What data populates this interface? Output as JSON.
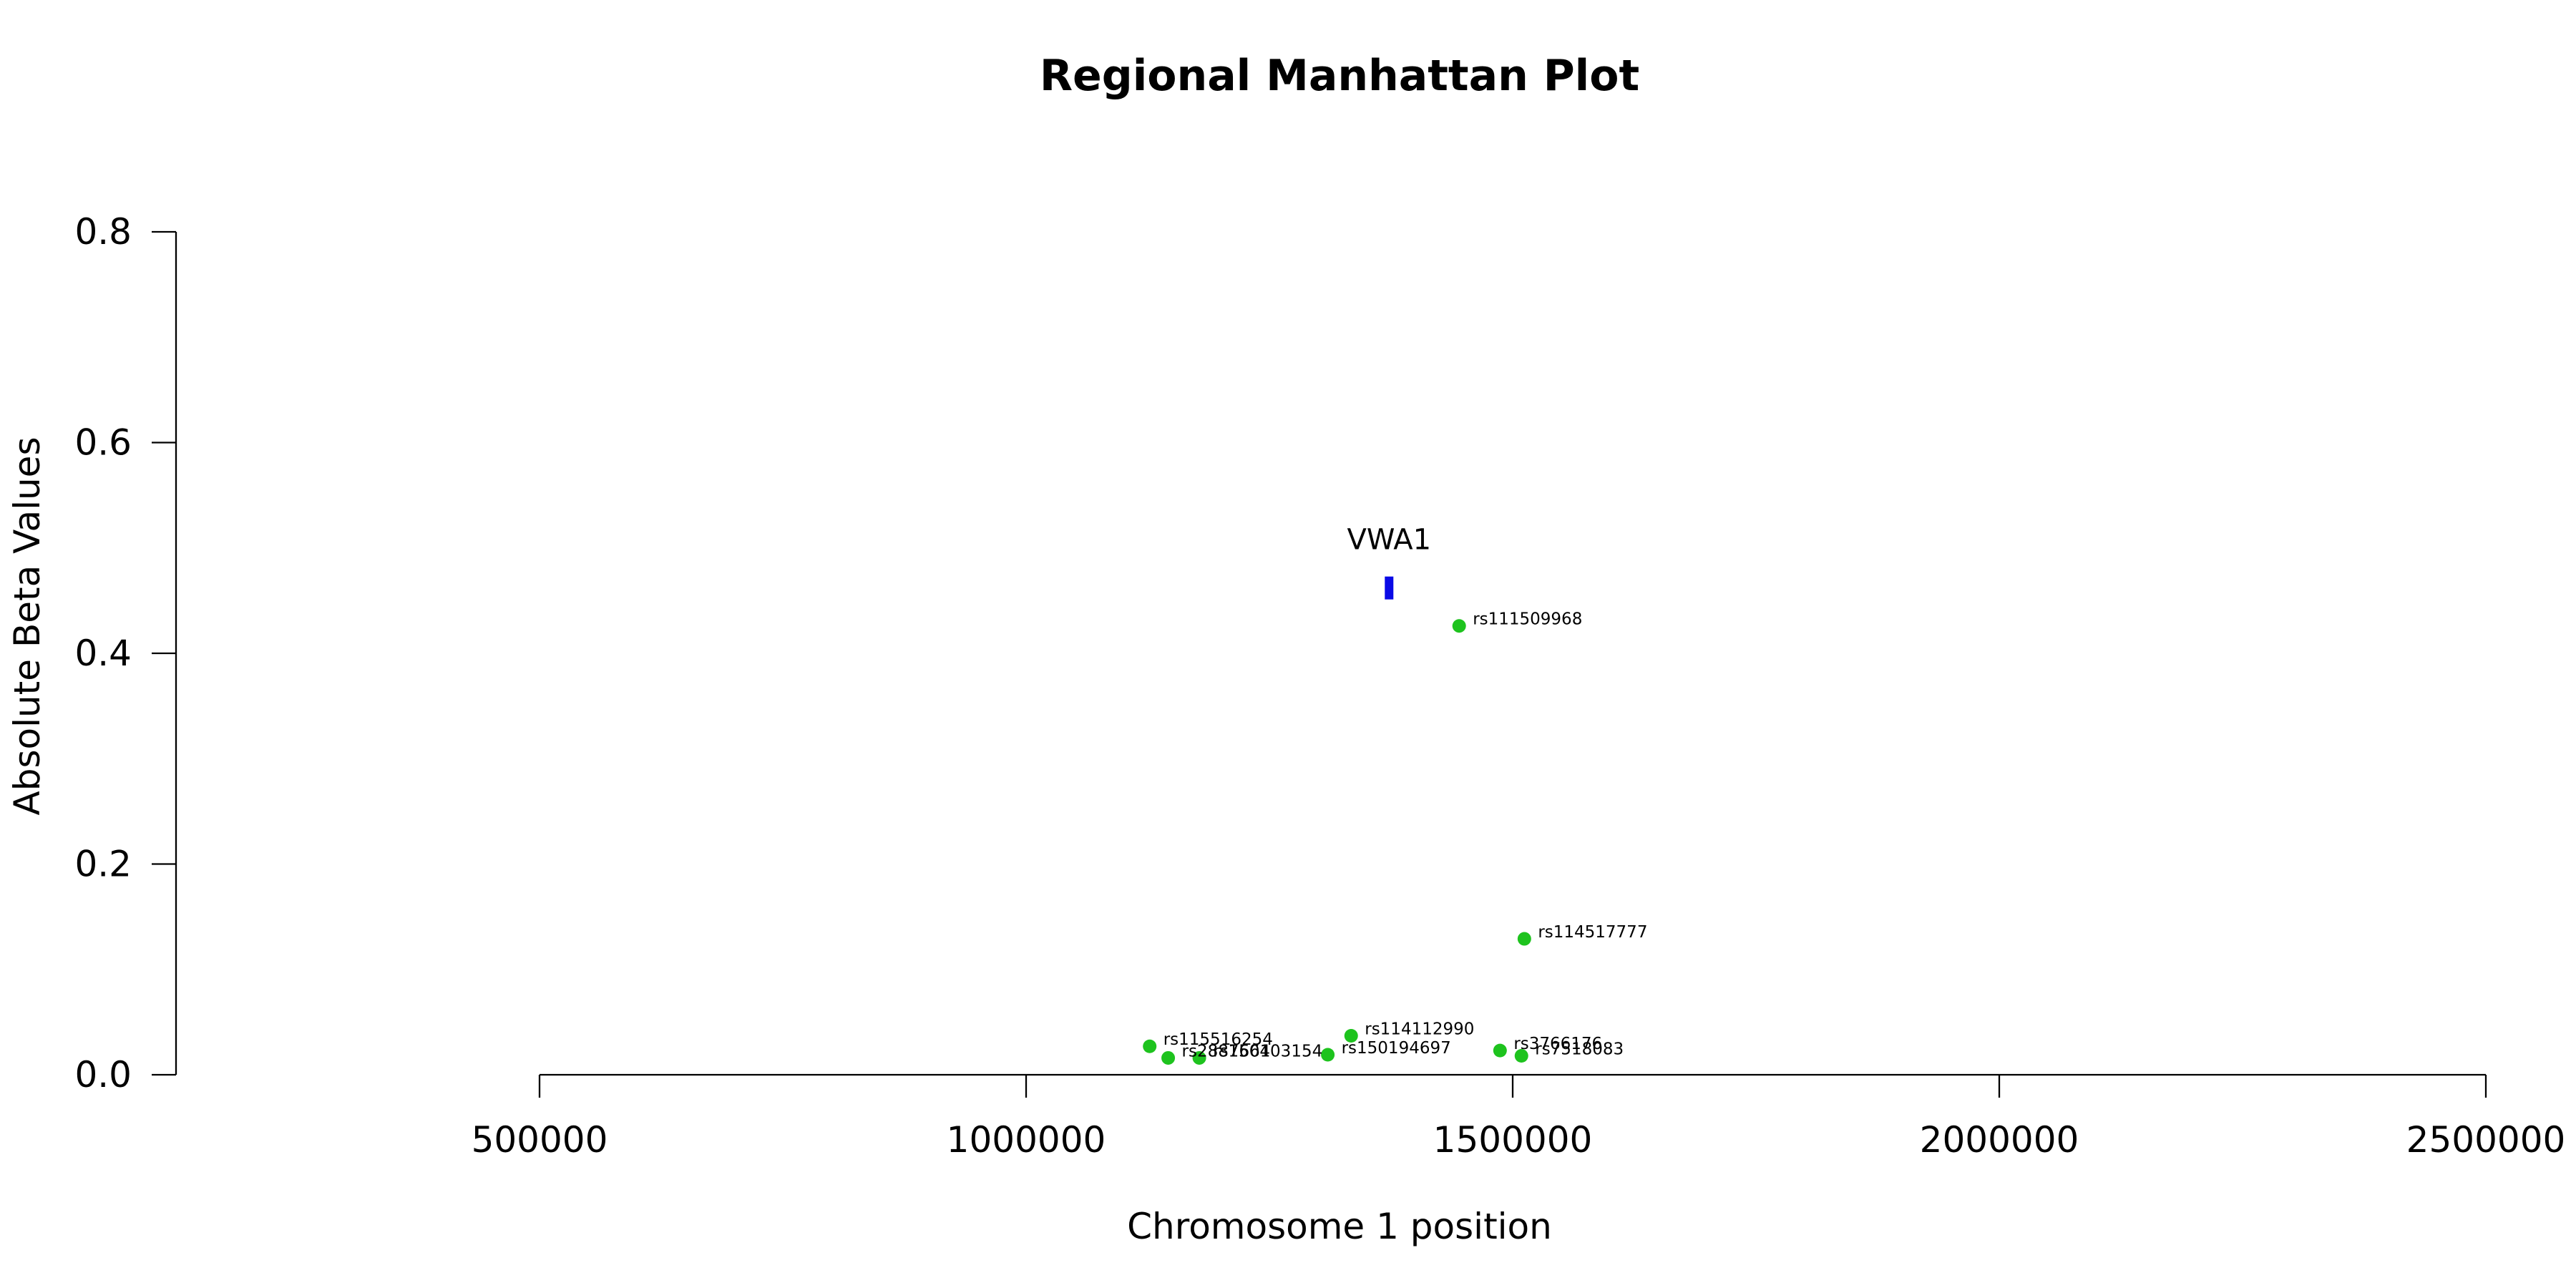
{
  "chart_data": {
    "type": "scatter",
    "title": "Regional Manhattan Plot",
    "xlabel": "Chromosome 1 position",
    "ylabel": "Absolute Beta Values",
    "xlim": [
      500000,
      2500000
    ],
    "ylim": [
      0,
      0.8
    ],
    "xticks": [
      500000,
      1000000,
      1500000,
      2000000,
      2500000
    ],
    "xtick_labels": [
      "500000",
      "1000000",
      "1500000",
      "2000000",
      "2500000"
    ],
    "yticks": [
      0,
      0.2,
      0.4,
      0.6,
      0.8
    ],
    "ytick_labels": [
      "0.0",
      "0.2",
      "0.4",
      "0.6",
      "0.8"
    ],
    "point_color": "#1ec31e",
    "points": [
      {
        "label": "rs111509968",
        "x": 1445000,
        "y": 0.426
      },
      {
        "label": "rs114517777",
        "x": 1512000,
        "y": 0.129
      },
      {
        "label": "rs114112990",
        "x": 1334000,
        "y": 0.037
      },
      {
        "label": "rs115516254",
        "x": 1127000,
        "y": 0.027
      },
      {
        "label": "rs3766176",
        "x": 1487000,
        "y": 0.023
      },
      {
        "label": "rs150194697",
        "x": 1310000,
        "y": 0.019
      },
      {
        "label": "rs7518083",
        "x": 1509000,
        "y": 0.018
      },
      {
        "label": "rs150403154",
        "x": 1178000,
        "y": 0.016
      },
      {
        "label": "rs2887661",
        "x": 1146000,
        "y": 0.016
      }
    ],
    "genes": [
      {
        "label": "VWA1",
        "x": 1373000,
        "y": 0.462,
        "color": "#0a0ae6"
      }
    ]
  }
}
